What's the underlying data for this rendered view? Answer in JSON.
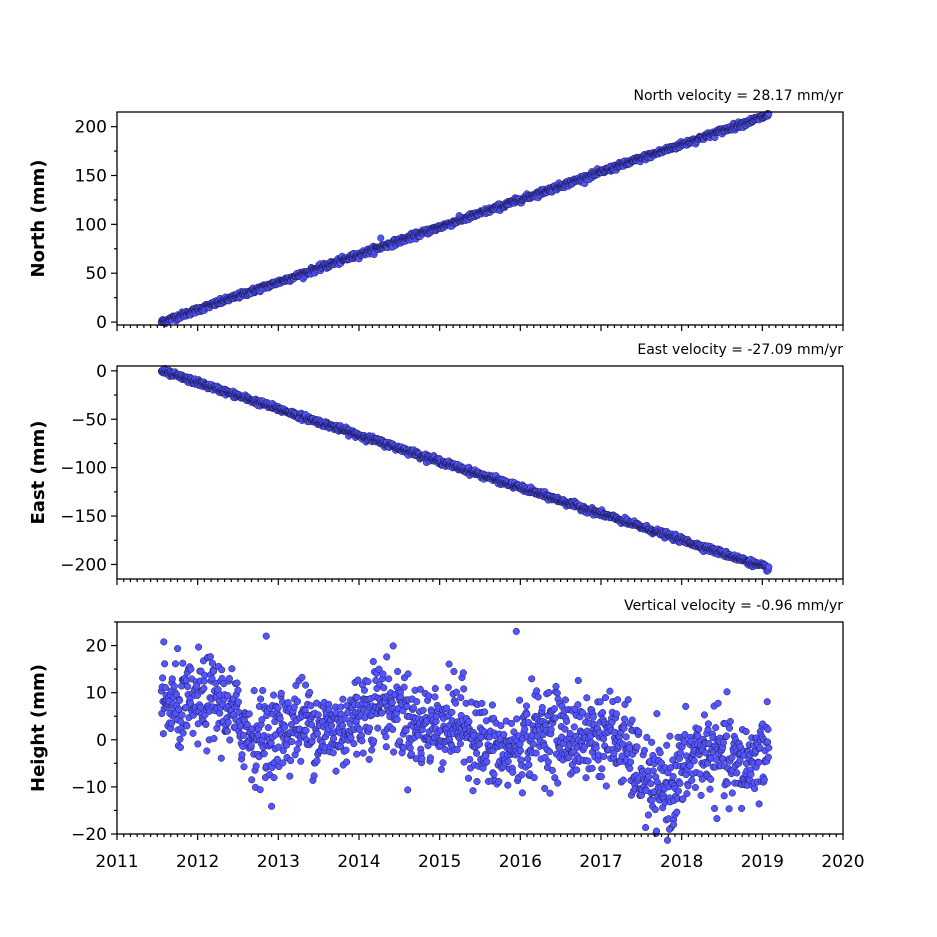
{
  "chart_data": [
    {
      "type": "scatter",
      "title": "North velocity = 28.17 mm/yr",
      "ylabel": "North (mm)",
      "xlim": [
        2011,
        2020
      ],
      "ylim": [
        -3,
        215
      ],
      "yticks": [
        0,
        50,
        100,
        150,
        200
      ],
      "trend": {
        "x_start": 2011.55,
        "x_end": 2019.08,
        "slope": 28.17,
        "start": 0,
        "noise": 1.5
      },
      "outliers": [
        {
          "x": 2014.27,
          "y": 86
        }
      ],
      "marker_color": "#5555ff",
      "grid": false
    },
    {
      "type": "scatter",
      "title": "East velocity = -27.09 mm/yr",
      "ylabel": "East (mm)",
      "xlim": [
        2011,
        2020
      ],
      "ylim": [
        -215,
        5
      ],
      "yticks": [
        0,
        -50,
        -100,
        -150,
        -200
      ],
      "trend": {
        "x_start": 2011.55,
        "x_end": 2019.08,
        "slope": -27.09,
        "start": 0,
        "noise": 1.5
      },
      "outliers": [],
      "marker_color": "#5555ff",
      "grid": false
    },
    {
      "type": "scatter",
      "title": "Vertical velocity = -0.96 mm/yr",
      "ylabel": "Height (mm)",
      "xlim": [
        2011,
        2020
      ],
      "ylim": [
        -20,
        25
      ],
      "yticks": [
        20,
        10,
        0,
        -10,
        -20
      ],
      "xticks": [
        2011,
        2012,
        2013,
        2014,
        2015,
        2016,
        2017,
        2018,
        2019,
        2020
      ],
      "trend": {
        "x_start": 2011.55,
        "x_end": 2019.08,
        "slope": -0.96,
        "start": 6,
        "noise": 4.5
      },
      "seasonal_dip": {
        "center": 2017.6,
        "width": 0.5,
        "depth": -10
      },
      "outliers": [
        {
          "x": 2012.85,
          "y": 22
        },
        {
          "x": 2015.95,
          "y": 23
        },
        {
          "x": 2017.85,
          "y": -19
        },
        {
          "x": 2017.9,
          "y": -18
        }
      ],
      "marker_color": "#5555ff",
      "grid": false
    }
  ]
}
